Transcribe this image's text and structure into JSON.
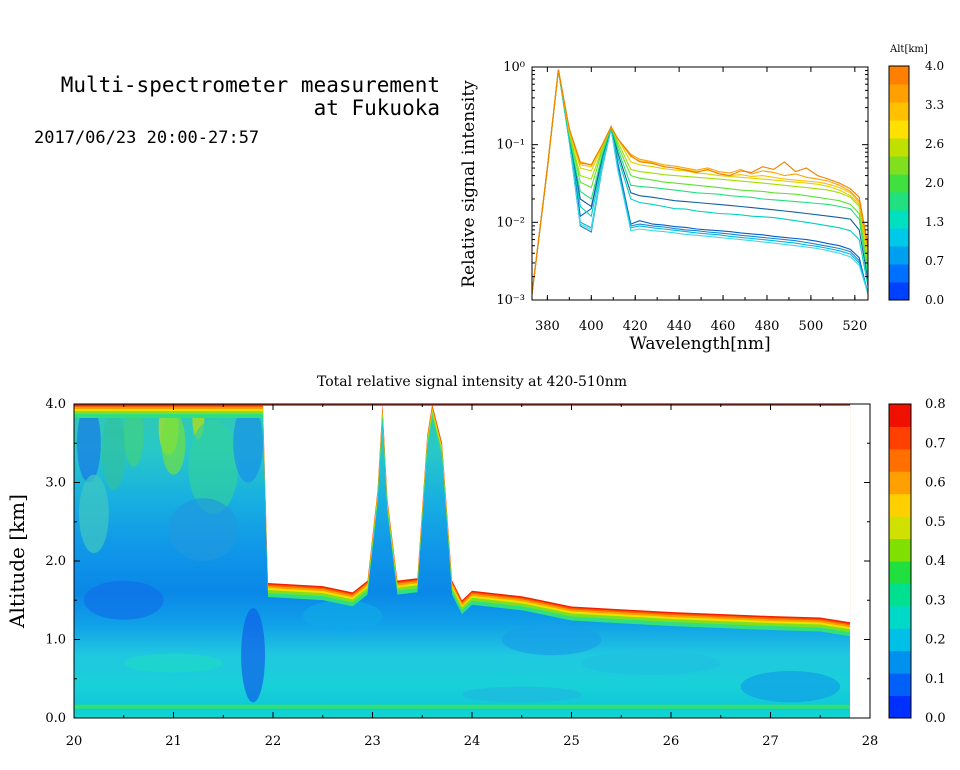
{
  "header": {
    "title_line1": "Multi-spectrometer measurement",
    "title_line2": "at Fukuoka",
    "date_range": "2017/06/23 20:00-27:57"
  },
  "chart_data": [
    {
      "type": "line",
      "title": "",
      "xlabel": "Wavelength[nm]",
      "ylabel": "Relative signal intensity",
      "yscale": "log",
      "xlim": [
        373,
        526
      ],
      "ylim": [
        0.001,
        1
      ],
      "x_ticks": [
        "380",
        "400",
        "420",
        "440",
        "460",
        "480",
        "500",
        "520"
      ],
      "y_ticks": [
        "10⁻³",
        "10⁻²",
        "10⁻¹",
        "10⁰"
      ],
      "colorbar": {
        "label": "Alt[km]",
        "ticks": [
          "0.0",
          "0.7",
          "1.3",
          "2.0",
          "2.6",
          "3.3",
          "4.0"
        ],
        "colors": [
          "#0040ff",
          "#0070ff",
          "#00a0f0",
          "#00c8e8",
          "#00e0c0",
          "#20e080",
          "#40e040",
          "#80e020",
          "#c0e000",
          "#ffe000",
          "#ffc000",
          "#ffa000",
          "#ff8000"
        ]
      },
      "x": [
        373,
        380,
        385,
        390,
        395,
        400,
        405,
        409,
        412,
        418,
        422,
        428,
        433,
        438,
        443,
        448,
        453,
        458,
        463,
        468,
        473,
        478,
        483,
        488,
        493,
        498,
        503,
        508,
        513,
        518,
        522,
        526
      ],
      "series": [
        {
          "color": "#0060d0",
          "values": [
            0.0012,
            0.05,
            0.92,
            0.12,
            0.012,
            0.015,
            0.07,
            0.17,
            0.06,
            0.0095,
            0.0105,
            0.0095,
            0.0092,
            0.0088,
            0.0086,
            0.0082,
            0.008,
            0.0078,
            0.0076,
            0.0073,
            0.0071,
            0.0069,
            0.0066,
            0.0064,
            0.0062,
            0.006,
            0.0057,
            0.0053,
            0.005,
            0.0045,
            0.0035,
            0.0012
          ]
        },
        {
          "color": "#1a88c8",
          "values": [
            0.0012,
            0.05,
            0.92,
            0.11,
            0.009,
            0.0075,
            0.05,
            0.16,
            0.055,
            0.009,
            0.0095,
            0.009,
            0.0087,
            0.0083,
            0.008,
            0.0078,
            0.0075,
            0.0073,
            0.0071,
            0.0068,
            0.0066,
            0.0064,
            0.0062,
            0.006,
            0.0058,
            0.0055,
            0.0052,
            0.0049,
            0.0046,
            0.0042,
            0.0032,
            0.0012
          ]
        },
        {
          "color": "#00b8e0",
          "values": [
            0.0012,
            0.05,
            0.92,
            0.11,
            0.01,
            0.0085,
            0.055,
            0.16,
            0.05,
            0.0085,
            0.009,
            0.0085,
            0.0082,
            0.0079,
            0.0076,
            0.0073,
            0.0071,
            0.0069,
            0.0066,
            0.0064,
            0.0062,
            0.006,
            0.0058,
            0.0056,
            0.0054,
            0.0051,
            0.0049,
            0.0046,
            0.0043,
            0.0039,
            0.003,
            0.0012
          ]
        },
        {
          "color": "#40d8e8",
          "values": [
            0.0012,
            0.05,
            0.92,
            0.11,
            0.0095,
            0.008,
            0.052,
            0.16,
            0.048,
            0.0078,
            0.0082,
            0.0078,
            0.0076,
            0.0073,
            0.007,
            0.0068,
            0.0066,
            0.0064,
            0.0062,
            0.006,
            0.0058,
            0.0056,
            0.0054,
            0.0052,
            0.005,
            0.0048,
            0.0046,
            0.0043,
            0.004,
            0.0036,
            0.0028,
            0.0012
          ]
        },
        {
          "color": "#00d0c0",
          "values": [
            0.0012,
            0.05,
            0.92,
            0.12,
            0.016,
            0.012,
            0.06,
            0.17,
            0.07,
            0.02,
            0.018,
            0.017,
            0.016,
            0.015,
            0.0148,
            0.014,
            0.0135,
            0.013,
            0.0128,
            0.0125,
            0.012,
            0.0118,
            0.0115,
            0.011,
            0.0105,
            0.01,
            0.0095,
            0.009,
            0.0085,
            0.0078,
            0.006,
            0.0015
          ]
        },
        {
          "color": "#1060a0",
          "values": [
            0.0012,
            0.05,
            0.92,
            0.13,
            0.02,
            0.016,
            0.07,
            0.17,
            0.08,
            0.024,
            0.022,
            0.021,
            0.02,
            0.019,
            0.0185,
            0.018,
            0.0175,
            0.017,
            0.0165,
            0.016,
            0.0155,
            0.015,
            0.0145,
            0.014,
            0.0135,
            0.013,
            0.0125,
            0.012,
            0.0115,
            0.011,
            0.008,
            0.0018
          ]
        },
        {
          "color": "#20e080",
          "values": [
            0.0012,
            0.05,
            0.92,
            0.13,
            0.025,
            0.02,
            0.075,
            0.17,
            0.09,
            0.03,
            0.029,
            0.028,
            0.027,
            0.026,
            0.025,
            0.024,
            0.0235,
            0.023,
            0.022,
            0.0215,
            0.021,
            0.02,
            0.0195,
            0.019,
            0.0185,
            0.018,
            0.0175,
            0.017,
            0.016,
            0.015,
            0.011,
            0.002
          ]
        },
        {
          "color": "#60e030",
          "values": [
            0.0012,
            0.05,
            0.92,
            0.14,
            0.033,
            0.028,
            0.085,
            0.17,
            0.1,
            0.04,
            0.037,
            0.035,
            0.033,
            0.032,
            0.031,
            0.03,
            0.029,
            0.028,
            0.027,
            0.026,
            0.0255,
            0.025,
            0.024,
            0.0235,
            0.023,
            0.022,
            0.021,
            0.02,
            0.019,
            0.017,
            0.013,
            0.0025
          ]
        },
        {
          "color": "#a0e000",
          "values": [
            0.0012,
            0.05,
            0.92,
            0.14,
            0.04,
            0.036,
            0.09,
            0.17,
            0.11,
            0.048,
            0.045,
            0.043,
            0.041,
            0.04,
            0.039,
            0.038,
            0.037,
            0.036,
            0.035,
            0.034,
            0.033,
            0.032,
            0.031,
            0.03,
            0.029,
            0.028,
            0.027,
            0.026,
            0.024,
            0.021,
            0.016,
            0.003
          ]
        },
        {
          "color": "#e0d000",
          "values": [
            0.0012,
            0.05,
            0.92,
            0.15,
            0.05,
            0.046,
            0.095,
            0.17,
            0.12,
            0.06,
            0.055,
            0.052,
            0.049,
            0.047,
            0.046,
            0.043,
            0.042,
            0.04,
            0.039,
            0.038,
            0.037,
            0.036,
            0.035,
            0.034,
            0.033,
            0.032,
            0.031,
            0.029,
            0.026,
            0.022,
            0.017,
            0.0035
          ]
        },
        {
          "color": "#ffc000",
          "values": [
            0.0012,
            0.05,
            0.92,
            0.15,
            0.055,
            0.052,
            0.1,
            0.17,
            0.12,
            0.07,
            0.062,
            0.058,
            0.052,
            0.05,
            0.048,
            0.045,
            0.047,
            0.043,
            0.04,
            0.041,
            0.039,
            0.04,
            0.038,
            0.036,
            0.035,
            0.034,
            0.033,
            0.031,
            0.028,
            0.024,
            0.018,
            0.004
          ]
        },
        {
          "color": "#ffa000",
          "values": [
            0.0012,
            0.05,
            0.92,
            0.16,
            0.06,
            0.055,
            0.1,
            0.17,
            0.12,
            0.075,
            0.065,
            0.06,
            0.055,
            0.053,
            0.05,
            0.047,
            0.05,
            0.045,
            0.043,
            0.048,
            0.042,
            0.046,
            0.044,
            0.04,
            0.042,
            0.038,
            0.036,
            0.034,
            0.03,
            0.025,
            0.019,
            0.0045
          ]
        },
        {
          "color": "#f08000",
          "values": [
            0.0012,
            0.05,
            0.92,
            0.16,
            0.058,
            0.055,
            0.1,
            0.17,
            0.12,
            0.072,
            0.06,
            0.057,
            0.052,
            0.05,
            0.047,
            0.044,
            0.048,
            0.042,
            0.04,
            0.046,
            0.044,
            0.052,
            0.048,
            0.06,
            0.045,
            0.05,
            0.04,
            0.036,
            0.032,
            0.027,
            0.021,
            0.005
          ]
        }
      ]
    },
    {
      "type": "heatmap",
      "title": "Total relative signal intensity at 420-510nm",
      "xlabel": "",
      "ylabel": "Altitude [km]",
      "xlim": [
        20,
        28
      ],
      "ylim": [
        0,
        4
      ],
      "x_ticks": [
        "20",
        "21",
        "22",
        "23",
        "24",
        "25",
        "26",
        "27",
        "28"
      ],
      "y_ticks": [
        "0.0",
        "1.0",
        "2.0",
        "3.0",
        "4.0"
      ],
      "colorbar": {
        "ticks": [
          "0.0",
          "0.1",
          "0.2",
          "0.3",
          "0.4",
          "0.5",
          "0.6",
          "0.7",
          "0.8"
        ],
        "colors": [
          "#0030ff",
          "#0060f8",
          "#0090ee",
          "#00c0e8",
          "#00d8c8",
          "#00e090",
          "#20e040",
          "#80e000",
          "#d0e000",
          "#ffd000",
          "#ffa000",
          "#ff7000",
          "#ff4000",
          "#f01000"
        ]
      },
      "data_end_time": 27.8,
      "cloud_base_km": [
        [
          20,
          4.0
        ],
        [
          21.9,
          4.0
        ],
        [
          21.95,
          1.72
        ],
        [
          22.5,
          1.68
        ],
        [
          22.8,
          1.6
        ],
        [
          22.95,
          1.75
        ],
        [
          23.05,
          2.9
        ],
        [
          23.1,
          4.0
        ],
        [
          23.15,
          2.8
        ],
        [
          23.25,
          1.75
        ],
        [
          23.45,
          1.78
        ],
        [
          23.55,
          3.6
        ],
        [
          23.6,
          4.0
        ],
        [
          23.7,
          3.5
        ],
        [
          23.8,
          1.75
        ],
        [
          23.9,
          1.5
        ],
        [
          24.0,
          1.62
        ],
        [
          24.5,
          1.55
        ],
        [
          24.7,
          1.5
        ],
        [
          25.0,
          1.42
        ],
        [
          26.0,
          1.35
        ],
        [
          27.0,
          1.3
        ],
        [
          27.5,
          1.28
        ],
        [
          27.8,
          1.22
        ]
      ]
    }
  ]
}
